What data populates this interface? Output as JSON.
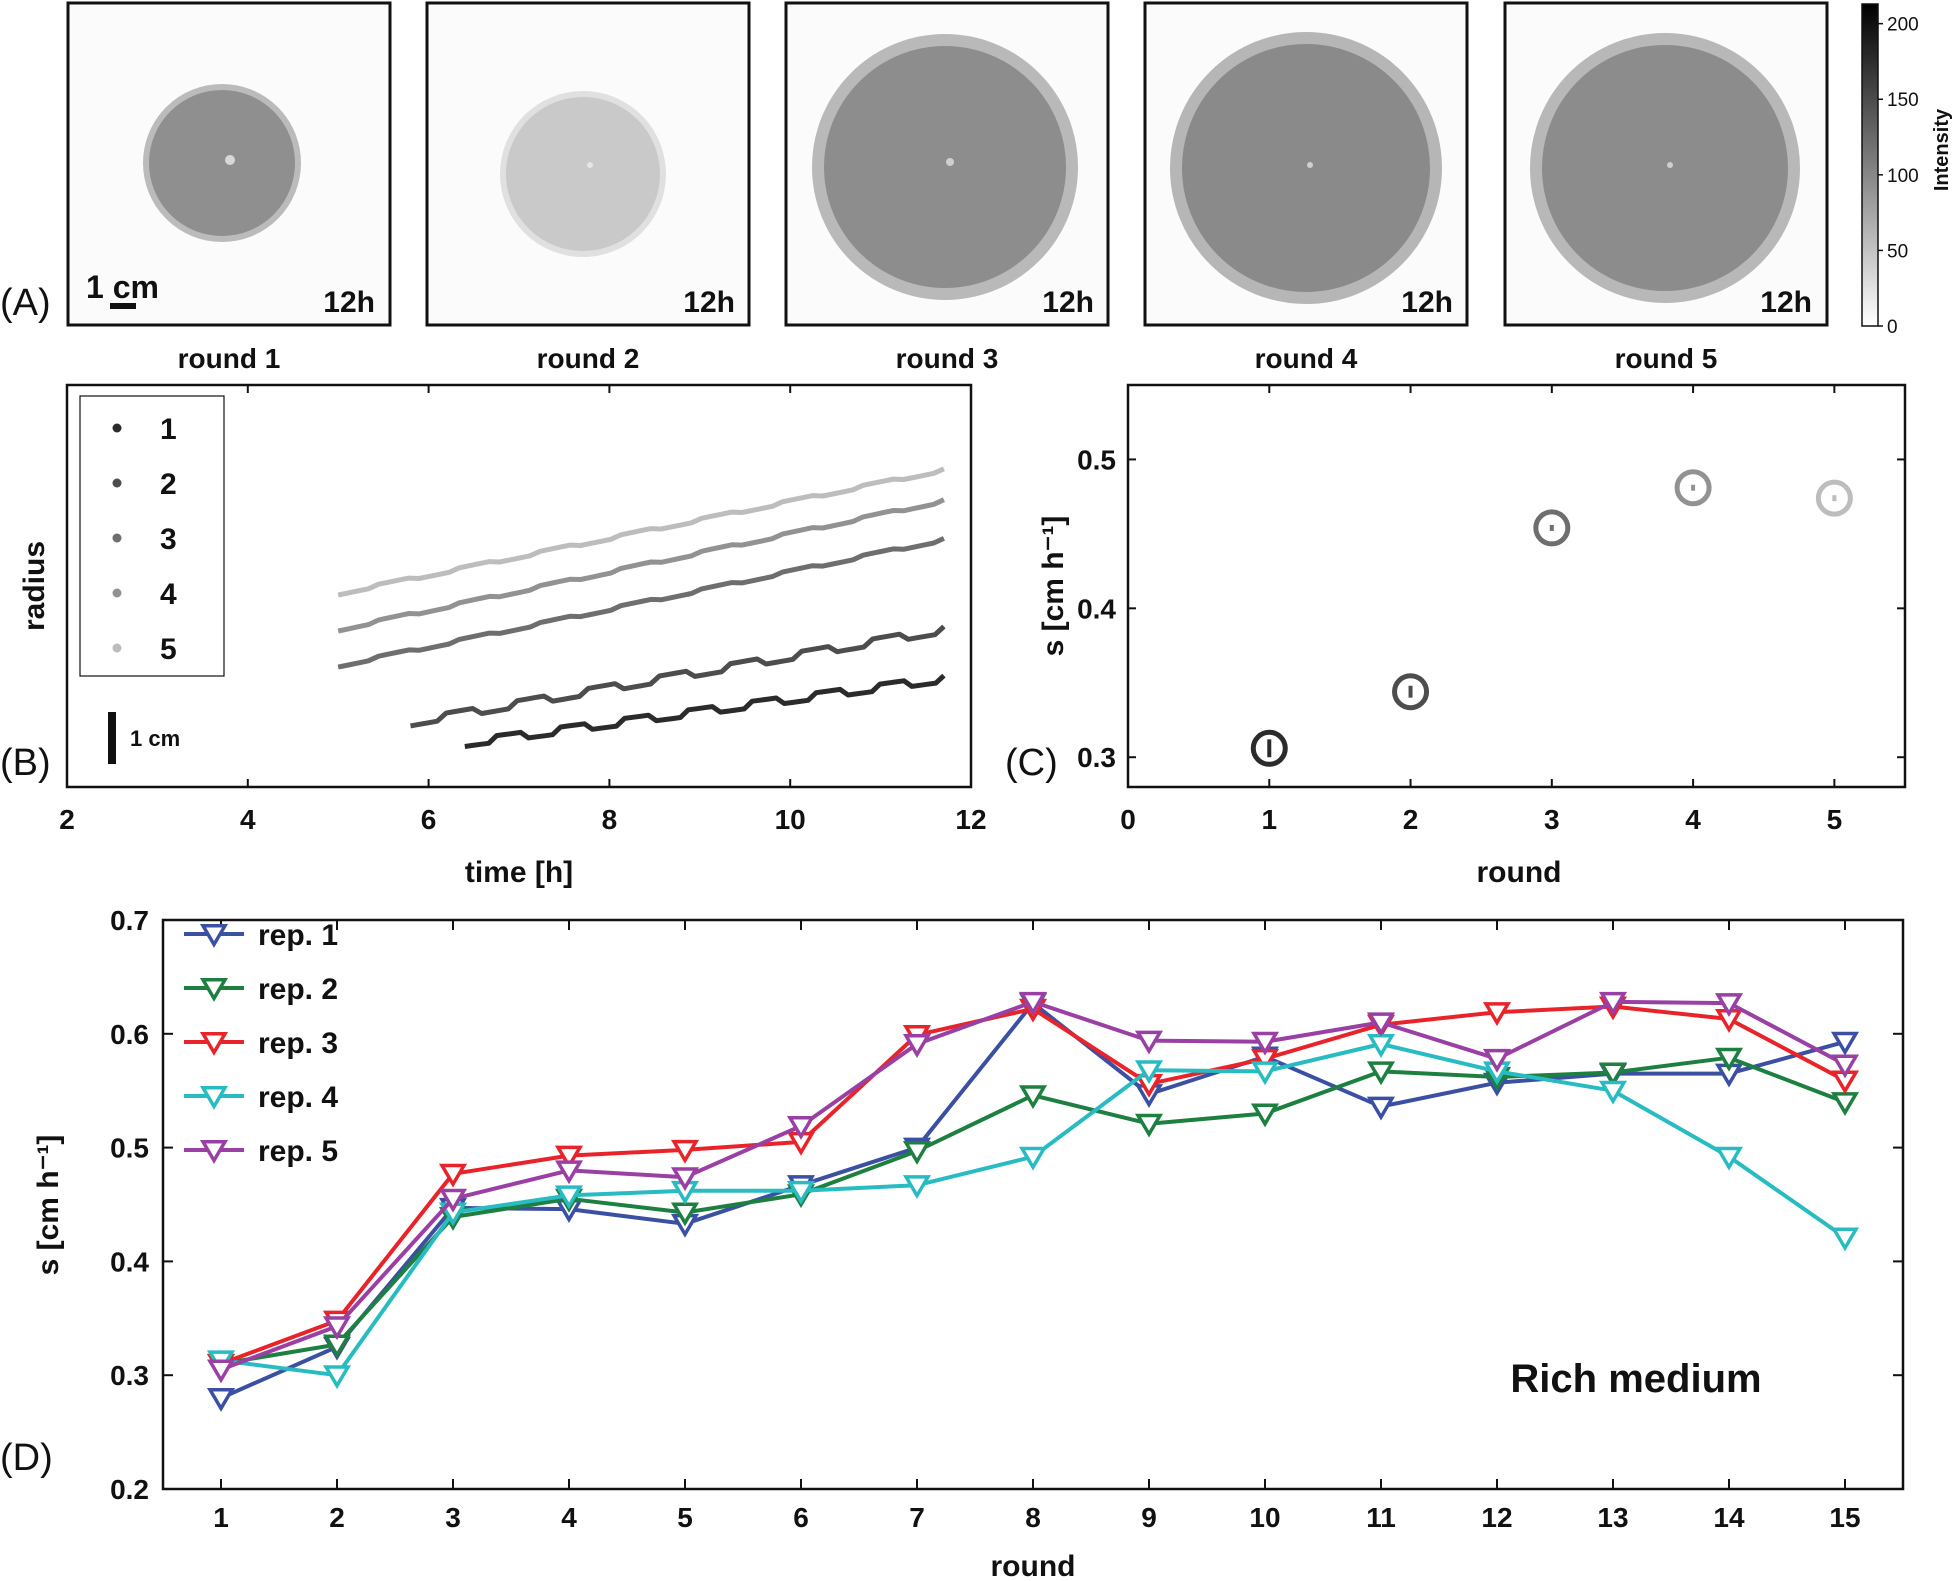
{
  "colors": {
    "rep1": "#3b4fa3",
    "rep2": "#1e8040",
    "rep3": "#e8242a",
    "rep4": "#28bcc2",
    "rep5": "#9a3fa3",
    "round1": "#2b2b2b",
    "round2": "#4d4d4d",
    "round3": "#6e6e6e",
    "round4": "#929292",
    "round5": "#bdbdbd"
  },
  "panelA": {
    "letter": "(A)",
    "scale_bar": "1 cm",
    "images": [
      {
        "time": "12h",
        "label": "round 1",
        "disc_gray": "#8f8f8f",
        "time_color": "#4a4a4a"
      },
      {
        "time": "12h",
        "label": "round 2",
        "disc_gray": "#c9c9c9",
        "time_color": "#5a5a5a"
      },
      {
        "time": "12h",
        "label": "round 3",
        "disc_gray": "#8d8d8d",
        "time_color": "#6e6e6e"
      },
      {
        "time": "12h",
        "label": "round 4",
        "disc_gray": "#8a8a8a",
        "time_color": "#9a9a9a"
      },
      {
        "time": "12h",
        "label": "round 5",
        "disc_gray": "#8c8c8c",
        "time_color": "#bdbdbd"
      }
    ],
    "colorbar": {
      "label": "Intensity",
      "ticks": [
        "200",
        "150",
        "100",
        "50",
        "0"
      ],
      "min": 0,
      "max": 213
    }
  },
  "chart_data": [
    {
      "id": "B",
      "letter": "(B)",
      "type": "line",
      "title": "",
      "xlabel": "time [h]",
      "ylabel": "radius",
      "xlim": [
        2,
        12
      ],
      "xticks": [
        "2",
        "4",
        "6",
        "8",
        "10",
        "12"
      ],
      "scale_bar": "1 cm",
      "scale_bar_cm": 1,
      "ylim_cm": [
        0,
        7.8
      ],
      "legend": [
        "1",
        "2",
        "3",
        "4",
        "5"
      ],
      "series": [
        {
          "name": "1",
          "start": [
            6.4,
            0.85
          ],
          "end": [
            11.7,
            2.1
          ]
        },
        {
          "name": "2",
          "start": [
            5.8,
            1.25
          ],
          "end": [
            11.7,
            3.05
          ]
        },
        {
          "name": "3",
          "start": [
            5.0,
            2.35
          ],
          "end": [
            11.7,
            4.8
          ]
        },
        {
          "name": "4",
          "start": [
            5.0,
            3.05
          ],
          "end": [
            11.7,
            5.55
          ]
        },
        {
          "name": "5",
          "start": [
            5.0,
            3.75
          ],
          "end": [
            11.7,
            6.15
          ]
        }
      ]
    },
    {
      "id": "C",
      "letter": "(C)",
      "type": "scatter",
      "xlabel": "round",
      "ylabel": "s [cm h⁻¹]",
      "xlim": [
        0,
        5.5
      ],
      "ylim": [
        0.28,
        0.55
      ],
      "xticks": [
        "0",
        "1",
        "2",
        "3",
        "4",
        "5"
      ],
      "yticks": [
        "0.3",
        "0.4",
        "0.5"
      ],
      "x": [
        1,
        2,
        3,
        4,
        5
      ],
      "y": [
        0.306,
        0.344,
        0.454,
        0.481,
        0.474
      ],
      "err": [
        0.006,
        0.004,
        0.002,
        0.002,
        0.002
      ]
    },
    {
      "id": "D",
      "letter": "(D)",
      "type": "line",
      "annotation": "Rich medium",
      "xlabel": "round",
      "ylabel": "s [cm h⁻¹]",
      "xlim": [
        0.5,
        15.5
      ],
      "ylim": [
        0.2,
        0.7
      ],
      "categories": [
        "1",
        "2",
        "3",
        "4",
        "5",
        "6",
        "7",
        "8",
        "9",
        "10",
        "11",
        "12",
        "13",
        "14",
        "15"
      ],
      "yticks": [
        "0.2",
        "0.3",
        "0.4",
        "0.5",
        "0.6",
        "0.7"
      ],
      "series": [
        {
          "name": "rep. 1",
          "values": [
            0.28,
            0.325,
            0.447,
            0.446,
            0.433,
            0.467,
            0.5,
            0.627,
            0.547,
            0.58,
            0.536,
            0.557,
            0.565,
            0.565,
            0.593
          ]
        },
        {
          "name": "rep. 2",
          "values": [
            0.31,
            0.327,
            0.439,
            0.455,
            0.443,
            0.459,
            0.497,
            0.546,
            0.521,
            0.53,
            0.567,
            0.562,
            0.566,
            0.579,
            0.54
          ]
        },
        {
          "name": "rep. 3",
          "values": [
            0.31,
            0.348,
            0.477,
            0.493,
            0.498,
            0.505,
            0.599,
            0.622,
            0.556,
            0.578,
            0.608,
            0.619,
            0.624,
            0.613,
            0.559
          ]
        },
        {
          "name": "rep. 4",
          "values": [
            0.313,
            0.3,
            0.443,
            0.458,
            0.462,
            0.462,
            0.467,
            0.492,
            0.568,
            0.567,
            0.591,
            0.567,
            0.55,
            0.492,
            0.421
          ]
        },
        {
          "name": "rep. 5",
          "values": [
            0.305,
            0.343,
            0.455,
            0.48,
            0.474,
            0.519,
            0.591,
            0.628,
            0.594,
            0.593,
            0.61,
            0.578,
            0.628,
            0.627,
            0.573
          ]
        }
      ]
    }
  ]
}
